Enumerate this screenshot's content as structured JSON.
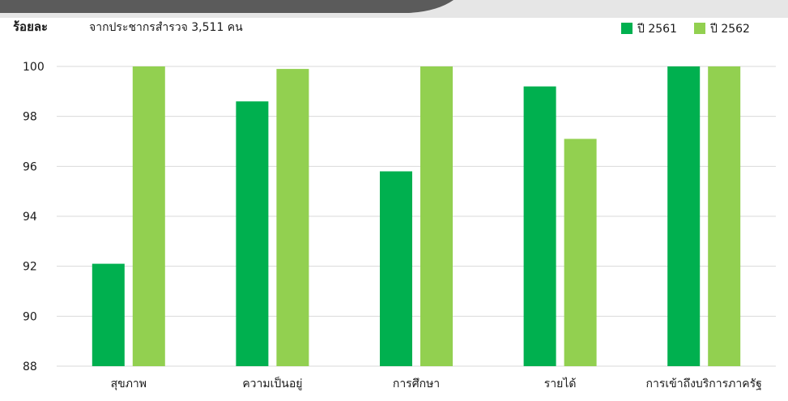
{
  "header": {
    "unit_label": "ร้อยละ",
    "subtitle": "จากประชากรสำรวจ 3,511 คน"
  },
  "colors": {
    "series_2561": "#00b04f",
    "series_2562": "#92d050",
    "grid": "#d9d9d9",
    "top_band": "#5b5b5b",
    "top_band_light": "#e6e6e6"
  },
  "chart_data": {
    "type": "bar",
    "categories": [
      "สุขภาพ",
      "ความเป็นอยู่",
      "การศึกษา",
      "รายได้",
      "การเข้าถึงบริการภาครัฐ"
    ],
    "series": [
      {
        "name": "ปี 2561",
        "values": [
          92.1,
          98.6,
          95.8,
          99.2,
          100
        ]
      },
      {
        "name": "ปี 2562",
        "values": [
          100,
          99.9,
          100,
          97.1,
          100
        ]
      }
    ],
    "ylim": [
      88,
      100
    ],
    "yticks": [
      88,
      90,
      92,
      94,
      96,
      98,
      100
    ],
    "ylabel": "ร้อยละ",
    "grid": true,
    "legend": "top-right"
  }
}
